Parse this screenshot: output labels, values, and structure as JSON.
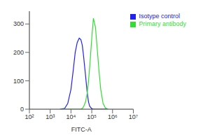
{
  "chart_data": {
    "type": "line",
    "x_label": "FITC-A",
    "log": "x",
    "grid": false,
    "legend": "upper right",
    "xlim": [
      100,
      10000000
    ],
    "xticks": [
      {
        "value": 100,
        "label": "10²"
      },
      {
        "value": 1000,
        "label": "10³"
      },
      {
        "value": 10000,
        "label": "10⁴"
      },
      {
        "value": 100000,
        "label": "10⁵"
      },
      {
        "value": 1000000,
        "label": "10⁶"
      },
      {
        "value": 10000000,
        "label": "10⁷"
      }
    ],
    "ylim": [
      0,
      345
    ],
    "yticks": [
      0,
      100,
      200,
      300
    ],
    "x": [
      3000,
      5000,
      7000,
      10000,
      13000,
      16000,
      20000,
      25000,
      30000,
      35000,
      40000,
      50000,
      60000,
      70000,
      80000,
      100000,
      120000,
      150000,
      180000,
      220000,
      270000,
      350000,
      450000,
      600000
    ],
    "series": [
      {
        "name": "Isotype control",
        "color": "#2222ee",
        "values": [
          0,
          3,
          20,
          70,
          140,
          200,
          235,
          250,
          245,
          225,
          190,
          120,
          60,
          25,
          10,
          2,
          0,
          0,
          0,
          0,
          0,
          0,
          0,
          0
        ]
      },
      {
        "name": "Primary antibody",
        "color": "#33dd33",
        "values": [
          0,
          0,
          0,
          0,
          0,
          0,
          0,
          0,
          0,
          3,
          8,
          25,
          55,
          100,
          150,
          250,
          320,
          290,
          220,
          140,
          70,
          20,
          5,
          0
        ]
      }
    ]
  }
}
